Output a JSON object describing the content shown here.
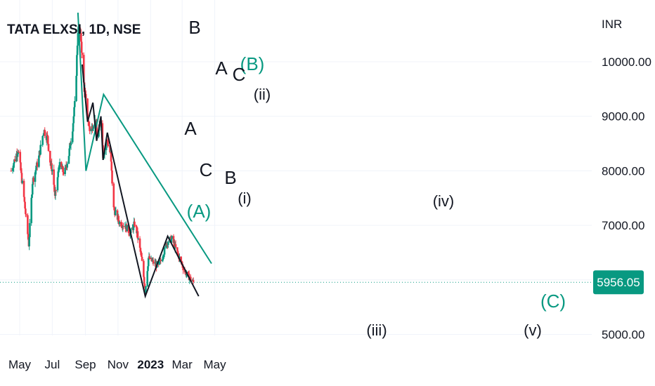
{
  "header": {
    "symbol_title": "TATA ELXSI, 1D, NSE"
  },
  "price_axis": {
    "currency": "INR",
    "ticks": [
      "10000.00",
      "9000.00",
      "8000.00",
      "7000.00",
      "5000.00"
    ],
    "tick_values": [
      10000,
      9000,
      8000,
      7000,
      5000
    ]
  },
  "time_axis": {
    "labels": [
      "May",
      "Jul",
      "Sep",
      "Nov",
      "2023",
      "Mar",
      "May"
    ]
  },
  "last_price": {
    "value": 5956.05,
    "label": "5956.05",
    "color": "#089981"
  },
  "colors": {
    "up": "#089981",
    "down": "#f23645",
    "green_wave": "#089981",
    "black_wave": "#131722",
    "grid": "#f0f3fa"
  },
  "chart_data": {
    "type": "candlestick",
    "title": "TATA ELXSI, 1D, NSE",
    "ylabel": "INR",
    "ylim": [
      4950,
      11050
    ],
    "candles": [],
    "wave_labels_green": [
      "(A)",
      "(B)",
      "(C)"
    ],
    "wave_labels_black": [
      "A",
      "B",
      "C",
      "A",
      "B",
      "C",
      "(i)",
      "(ii)",
      "(iii)",
      "(iv)",
      "(v)"
    ],
    "green_path": [
      {
        "t": "Aug 18 2022",
        "price": 10900
      },
      {
        "t": "Sep 2 2022",
        "price": 8000
      },
      {
        "t": "Oct 5 2022",
        "price": 9400
      },
      {
        "t": "Apr 25 2023",
        "price": 6300
      }
    ],
    "black_path": [
      {
        "t": "Aug 26 2022",
        "price": 9950
      },
      {
        "t": "Sep 5 2022",
        "price": 8900
      },
      {
        "t": "Sep 15 2022",
        "price": 9250
      },
      {
        "t": "Sep 22 2022",
        "price": 8550
      },
      {
        "t": "Sep 30 2022",
        "price": 9000
      },
      {
        "t": "Oct 4 2022",
        "price": 8200
      },
      {
        "t": "Oct 12 2022",
        "price": 8700
      },
      {
        "t": "Dec 22 2022",
        "price": 5700
      },
      {
        "t": "Feb 2 2023",
        "price": 6800
      },
      {
        "t": "Apr 1 2023",
        "price": 5700
      }
    ]
  }
}
